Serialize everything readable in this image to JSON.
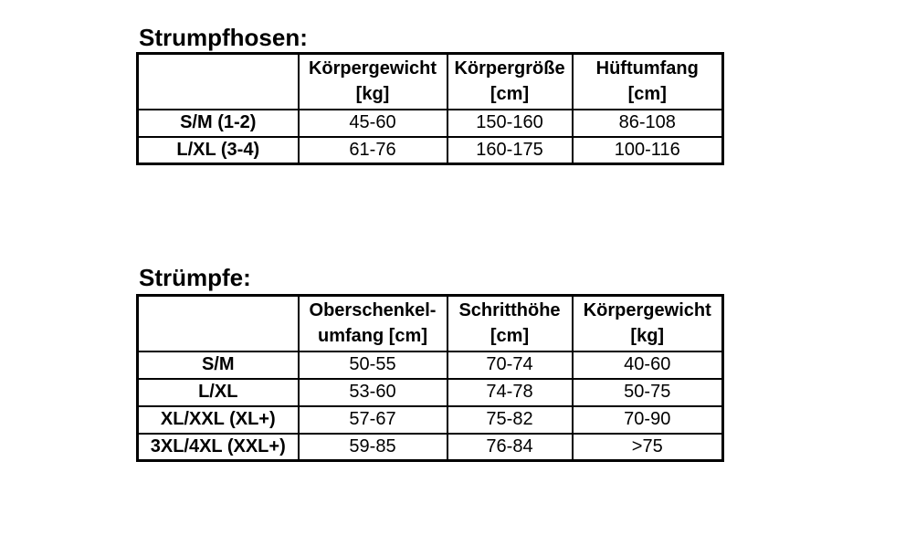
{
  "style": {
    "background": "#ffffff",
    "text": "#000000",
    "border": "#000000"
  },
  "strumpfhosen": {
    "title": "Strumpfhosen:",
    "headers": [
      {
        "line1": "",
        "line2": ""
      },
      {
        "line1": "Körpergewicht",
        "line2": "[kg]"
      },
      {
        "line1": "Körpergröße",
        "line2": "[cm]"
      },
      {
        "line1": "Hüftumfang",
        "line2": "[cm]"
      }
    ],
    "rows": [
      {
        "label": "S/M (1-2)",
        "values": [
          "45-60",
          "150-160",
          "86-108"
        ]
      },
      {
        "label": "L/XL (3-4)",
        "values": [
          "61-76",
          "160-175",
          "100-116"
        ]
      }
    ]
  },
  "struempfe": {
    "title": "Strümpfe:",
    "headers": [
      {
        "line1": "",
        "line2": ""
      },
      {
        "line1": "Oberschenkel-",
        "line2": "umfang [cm]"
      },
      {
        "line1": "Schritthöhe",
        "line2": "[cm]"
      },
      {
        "line1": "Körpergewicht",
        "line2": "[kg]"
      }
    ],
    "rows": [
      {
        "label": "S/M",
        "values": [
          "50-55",
          "70-74",
          "40-60"
        ]
      },
      {
        "label": "L/XL",
        "values": [
          "53-60",
          "74-78",
          "50-75"
        ]
      },
      {
        "label": "XL/XXL (XL+)",
        "values": [
          "57-67",
          "75-82",
          "70-90"
        ]
      },
      {
        "label": "3XL/4XL (XXL+)",
        "values": [
          "59-85",
          "76-84",
          ">75"
        ]
      }
    ]
  }
}
